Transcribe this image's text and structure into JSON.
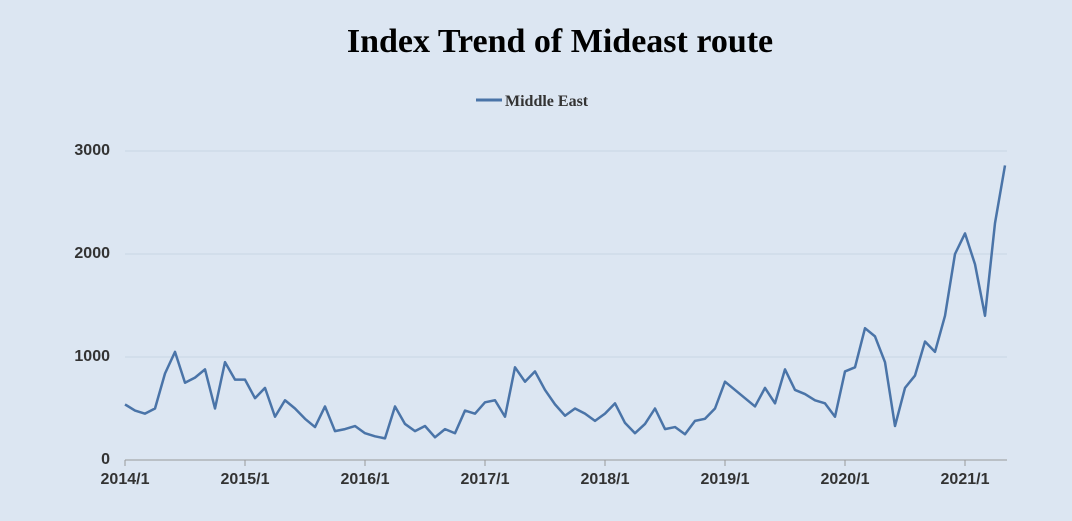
{
  "chart_data": {
    "type": "line",
    "title": "Index Trend of Mideast route",
    "categories": [
      "2014/1",
      null,
      null,
      null,
      null,
      null,
      null,
      null,
      null,
      null,
      null,
      null,
      "2015/1",
      null,
      null,
      null,
      null,
      null,
      null,
      null,
      null,
      null,
      null,
      null,
      "2016/1",
      null,
      null,
      null,
      null,
      null,
      null,
      null,
      null,
      null,
      null,
      null,
      "2017/1",
      null,
      null,
      null,
      null,
      null,
      null,
      null,
      null,
      null,
      null,
      null,
      "2018/1",
      null,
      null,
      null,
      null,
      null,
      null,
      null,
      null,
      null,
      null,
      null,
      "2019/1",
      null,
      null,
      null,
      null,
      null,
      null,
      null,
      null,
      null,
      null,
      null,
      "2020/1",
      null,
      null,
      null,
      null,
      null,
      null,
      null,
      null,
      null,
      null,
      null,
      "2021/1",
      null,
      null,
      null,
      null
    ],
    "series": [
      {
        "name": "Middle East",
        "color": "#4a74a8",
        "values": [
          540,
          480,
          450,
          500,
          840,
          1050,
          750,
          800,
          880,
          500,
          950,
          780,
          780,
          600,
          700,
          420,
          580,
          500,
          400,
          320,
          520,
          280,
          300,
          330,
          260,
          230,
          210,
          520,
          350,
          280,
          330,
          220,
          300,
          260,
          480,
          450,
          560,
          580,
          420,
          900,
          760,
          860,
          680,
          540,
          430,
          500,
          450,
          380,
          450,
          550,
          360,
          260,
          350,
          500,
          300,
          320,
          250,
          380,
          400,
          500,
          760,
          680,
          600,
          520,
          700,
          550,
          880,
          680,
          640,
          580,
          550,
          420,
          860,
          900,
          1280,
          1200,
          950,
          330,
          700,
          820,
          1150,
          1050,
          1400,
          2000,
          2200,
          1900,
          1400,
          2300,
          2860
        ]
      }
    ],
    "ylim": [
      0,
      3000
    ],
    "yticks": [
      0,
      1000,
      2000,
      3000
    ],
    "grid": true,
    "legend": "top"
  }
}
